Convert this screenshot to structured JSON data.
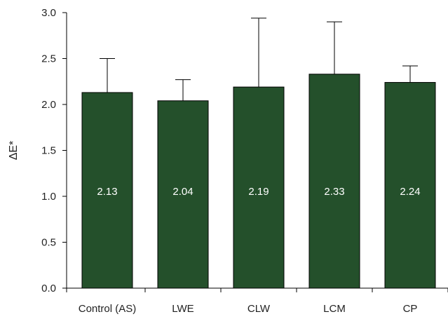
{
  "chart_data": {
    "type": "bar",
    "title": "",
    "xlabel": "",
    "ylabel": "ΔE*",
    "categories": [
      "Control (AS)",
      "LWE",
      "CLW",
      "LCM",
      "CP"
    ],
    "values": [
      2.13,
      2.04,
      2.19,
      2.33,
      2.24
    ],
    "error_upper": [
      2.5,
      2.27,
      2.94,
      2.9,
      2.42
    ],
    "data_labels": [
      "2.13",
      "2.04",
      "2.19",
      "2.33",
      "2.24"
    ],
    "ylim": [
      0,
      3.0
    ],
    "yticks": [
      0.0,
      0.5,
      1.0,
      1.5,
      2.0,
      2.5,
      3.0
    ],
    "ytick_labels": [
      "0.0",
      "0.5",
      "1.0",
      "1.5",
      "2.0",
      "2.5",
      "3.0"
    ],
    "grid": false,
    "legend": "none",
    "colors": {
      "bar": "#24502b",
      "bar_outline": "#000000",
      "data_label": "#ffffff"
    }
  }
}
